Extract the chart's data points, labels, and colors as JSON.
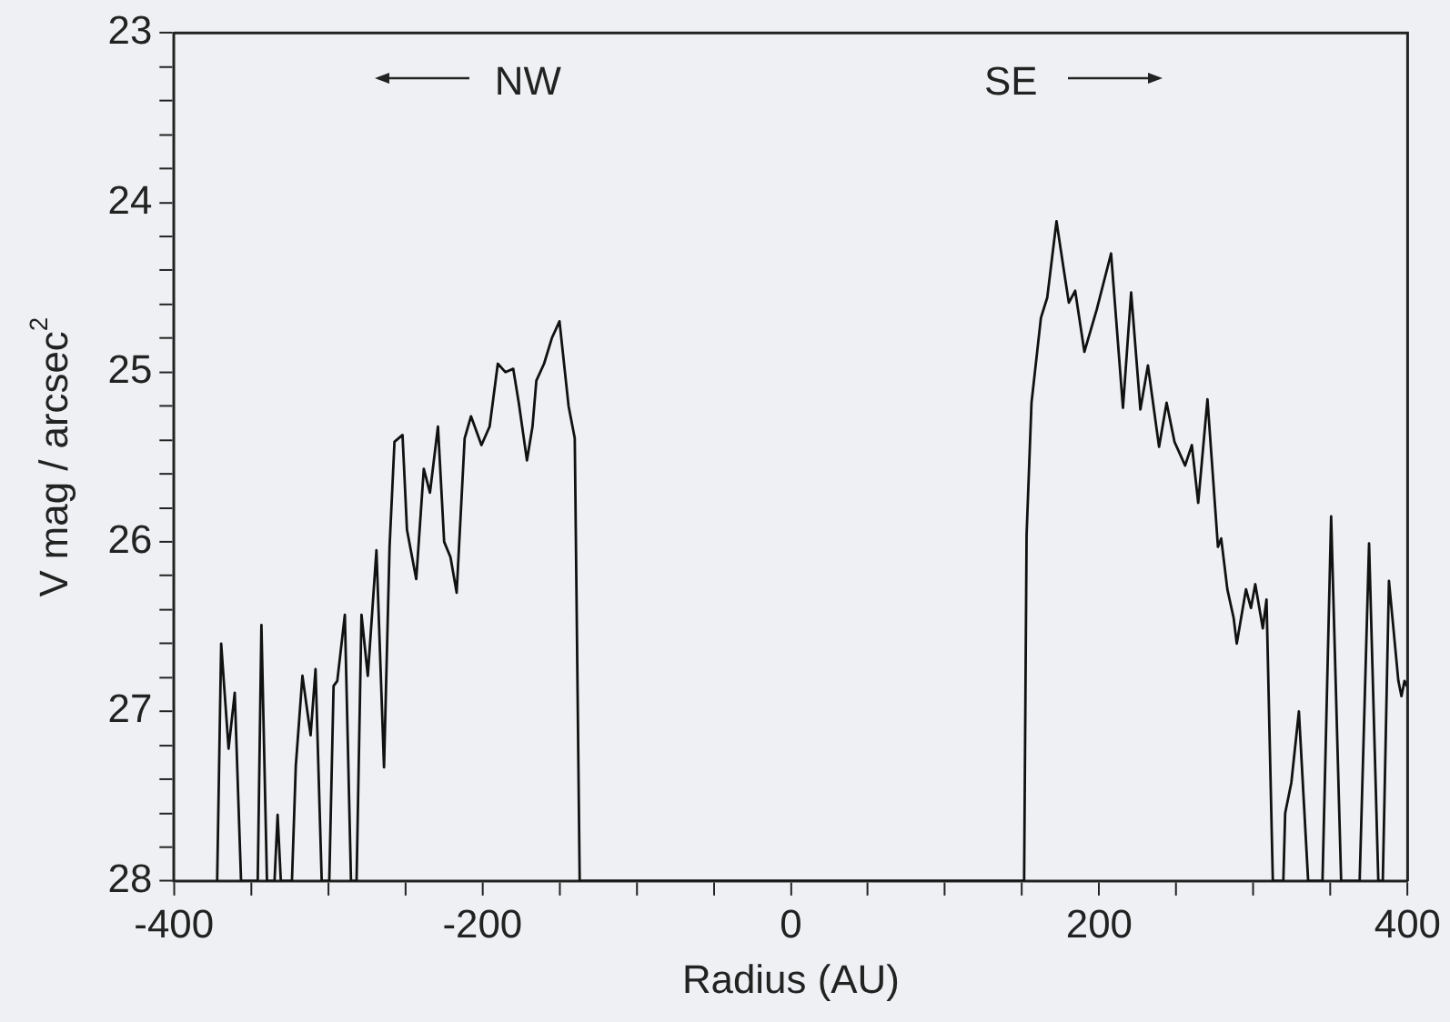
{
  "chart_data": {
    "type": "line",
    "xlabel": "Radius (AU)",
    "ylabel": "V mag / arcsec$^{2}$",
    "annotations": [
      "NW",
      "SE"
    ],
    "series": [
      {
        "color": "#111111",
        "x": [
          -372,
          -369.4,
          -364.6,
          -360.6,
          -356.5,
          -345.7,
          -343.3,
          -339.7,
          -334.8,
          -332.8,
          -330.7,
          -323.5,
          -321,
          -316.7,
          -311.4,
          -308.2,
          -304.2,
          -299.3,
          -296.5,
          -294.1,
          -289.2,
          -285.2,
          -281.6,
          -278.4,
          -274.3,
          -268.7,
          -263.8,
          -260.2,
          -257,
          -251.8,
          -248.9,
          -242.9,
          -238,
          -234,
          -228.8,
          -224.8,
          -220.7,
          -216.7,
          -211.5,
          -207.4,
          -200.6,
          -195.3,
          -190,
          -185,
          -180,
          -176.4,
          -171.1,
          -167.5,
          -165,
          -160,
          -155,
          -150,
          -144.1,
          -140.1,
          -136.9,
          151.3,
          152.9,
          156.1,
          162.2,
          166.3,
          172.3,
          177.1,
          180.3,
          184.4,
          190.4,
          198.4,
          207.7,
          215.4,
          220.7,
          226.7,
          231.6,
          238.8,
          243.7,
          248.8,
          255.7,
          260.1,
          264.2,
          270.2,
          277,
          279.1,
          283.1,
          287.2,
          289.2,
          295.2,
          298.4,
          301.2,
          306.1,
          308.5,
          312.6,
          319.4,
          320.6,
          324.6,
          329.5,
          335.5,
          344.8,
          350.4,
          356.9,
          368.9,
          375,
          381,
          383.9,
          387.9,
          394,
          396,
          398,
          400
        ],
        "values": [
          28,
          26.6,
          27.22,
          26.89,
          28,
          28,
          26.49,
          28,
          28,
          27.61,
          28,
          28,
          27.32,
          26.79,
          27.14,
          26.75,
          28,
          28,
          26.85,
          26.82,
          26.43,
          28,
          28,
          26.43,
          26.79,
          26.05,
          27.33,
          26.03,
          25.41,
          25.37,
          25.93,
          26.22,
          25.57,
          25.71,
          25.32,
          26,
          26.09,
          26.3,
          25.39,
          25.26,
          25.43,
          25.32,
          24.95,
          25,
          24.98,
          25.18,
          25.52,
          25.32,
          25.05,
          24.95,
          24.8,
          24.7,
          25.2,
          25.39,
          28,
          28,
          25.96,
          25.18,
          24.68,
          24.56,
          24.11,
          24.4,
          24.59,
          24.52,
          24.88,
          24.63,
          24.3,
          25.21,
          24.53,
          25.22,
          24.96,
          25.44,
          25.18,
          25.41,
          25.55,
          25.43,
          25.77,
          25.16,
          26.03,
          25.98,
          26.28,
          26.45,
          26.6,
          26.28,
          26.39,
          26.25,
          26.51,
          26.34,
          28,
          28,
          27.6,
          27.42,
          27,
          28,
          28,
          25.85,
          28,
          28,
          26.01,
          28,
          28,
          26.23,
          26.82,
          26.91,
          26.82,
          26.86
        ]
      }
    ],
    "xlim": [
      -400,
      400
    ],
    "xticks": [
      -400,
      {
        "value": -350,
        "label": null
      },
      {
        "value": -300,
        "label": null
      },
      {
        "value": -250,
        "label": null
      },
      -200,
      {
        "value": -150,
        "label": null
      },
      {
        "value": -100,
        "label": null
      },
      {
        "value": -50,
        "label": null
      },
      0,
      {
        "value": 50,
        "label": null
      },
      {
        "value": 100,
        "label": null
      },
      {
        "value": 150,
        "label": null
      },
      200,
      {
        "value": 250,
        "label": null
      },
      {
        "value": 300,
        "label": null
      },
      {
        "value": 350,
        "label": null
      },
      400
    ],
    "ylim": [
      28,
      23
    ],
    "yticks": [
      23,
      {
        "value": 23.2,
        "label": null
      },
      {
        "value": 23.4,
        "label": null
      },
      {
        "value": 23.6,
        "label": null
      },
      {
        "value": 23.8,
        "label": null
      },
      24,
      {
        "value": 24.2,
        "label": null
      },
      {
        "value": 24.4,
        "label": null
      },
      {
        "value": 24.6,
        "label": null
      },
      {
        "value": 24.8,
        "label": null
      },
      25,
      {
        "value": 25.2,
        "label": null
      },
      {
        "value": 25.4,
        "label": null
      },
      {
        "value": 25.6,
        "label": null
      },
      {
        "value": 25.8,
        "label": null
      },
      26,
      {
        "value": 26.2,
        "label": null
      },
      {
        "value": 26.4,
        "label": null
      },
      {
        "value": 26.6,
        "label": null
      },
      {
        "value": 26.8,
        "label": null
      },
      27,
      {
        "value": 27.2,
        "label": null
      },
      {
        "value": 27.4,
        "label": null
      },
      {
        "value": 27.6,
        "label": null
      },
      {
        "value": 27.8,
        "label": null
      },
      28
    ],
    "grid": false,
    "legend": false,
    "marker": "none",
    "line_style": "solid"
  }
}
